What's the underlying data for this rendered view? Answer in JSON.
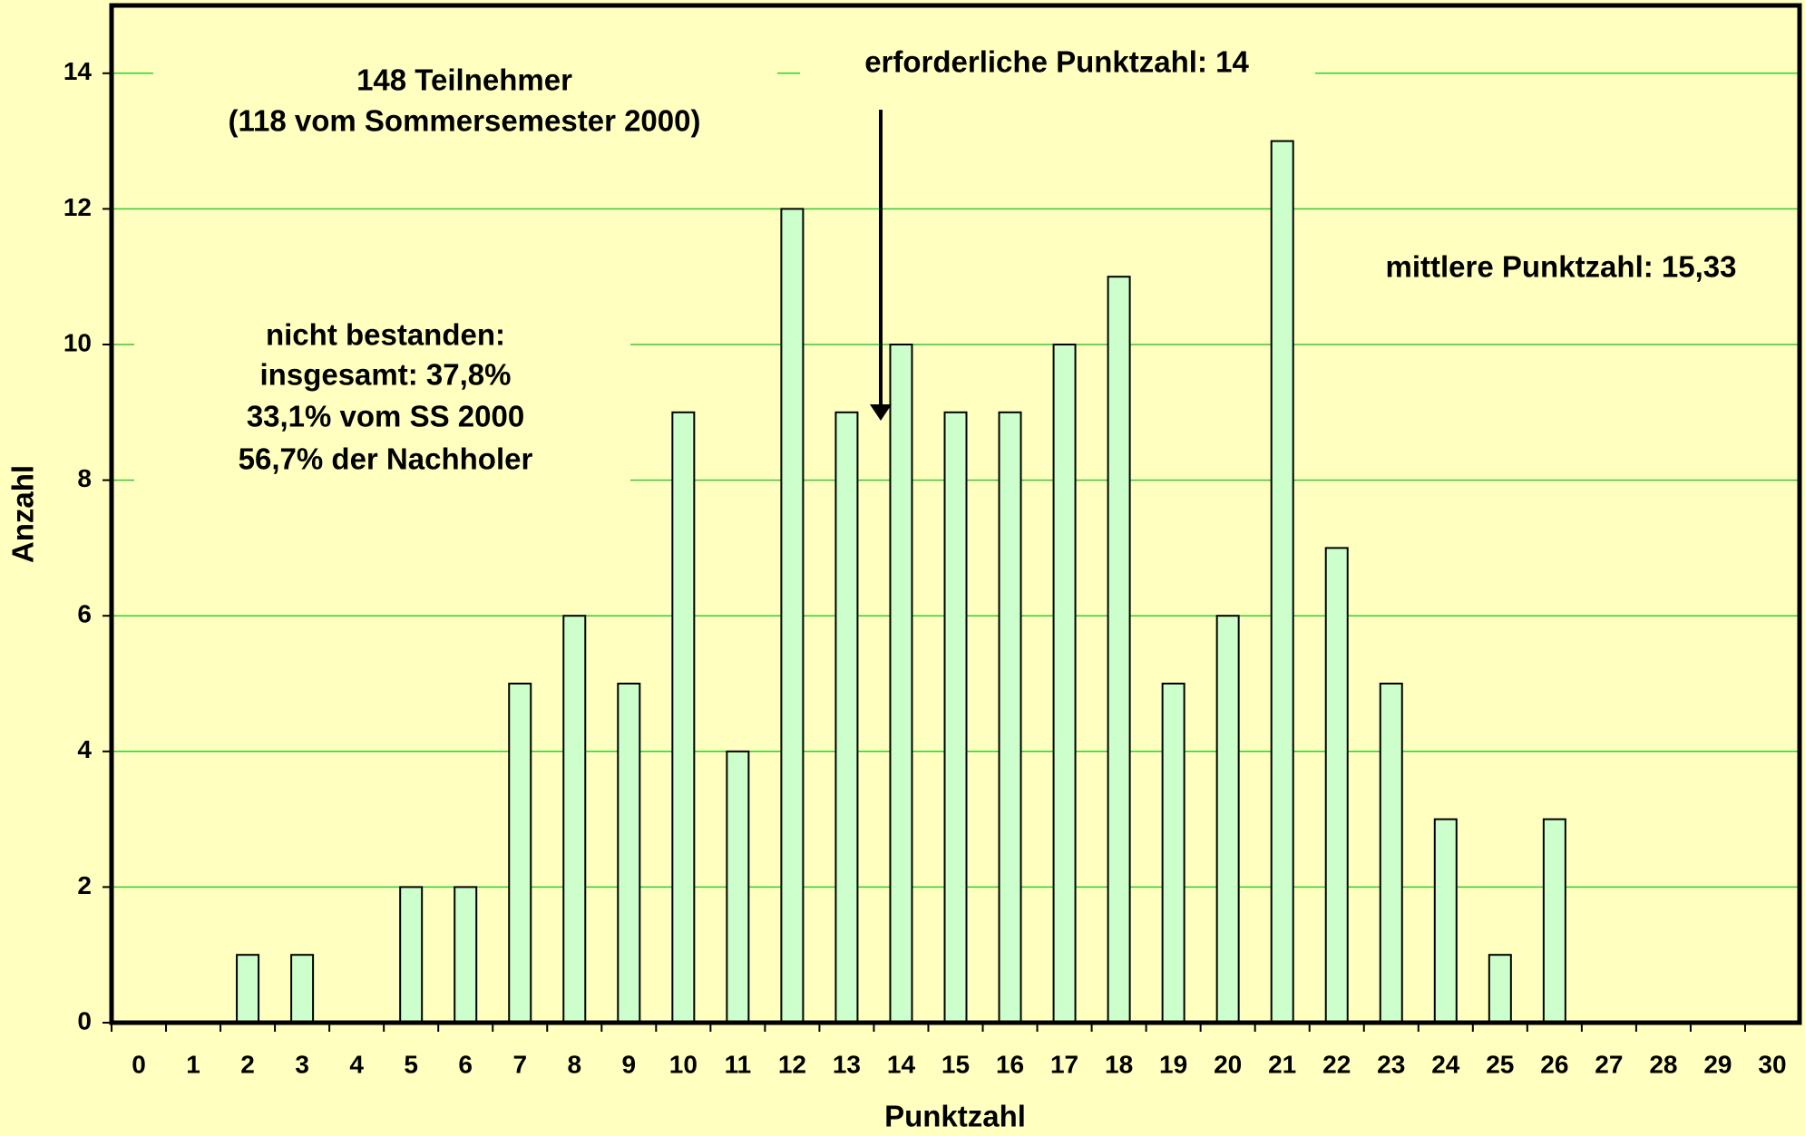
{
  "chart_data": {
    "type": "bar",
    "x_label": "Punktzahl",
    "y_label": "Anzahl",
    "categories": [
      "0",
      "1",
      "2",
      "3",
      "4",
      "5",
      "6",
      "7",
      "8",
      "9",
      "10",
      "11",
      "12",
      "13",
      "14",
      "15",
      "16",
      "17",
      "18",
      "19",
      "20",
      "21",
      "22",
      "23",
      "24",
      "25",
      "26",
      "27",
      "28",
      "29",
      "30"
    ],
    "values": [
      0,
      0,
      1,
      1,
      0,
      2,
      2,
      5,
      6,
      5,
      9,
      4,
      12,
      9,
      10,
      9,
      9,
      10,
      11,
      5,
      6,
      13,
      7,
      5,
      3,
      1,
      3,
      0,
      0,
      0,
      0
    ],
    "color": "#ccffcc",
    "ylim": [
      0,
      15
    ],
    "yticks": [
      0,
      2,
      4,
      6,
      8,
      10,
      12,
      14
    ],
    "grid": true,
    "grid_color": "#33cc33",
    "annotations": [
      "148 Teilnehmer",
      "(118 vom Sommersemester 2000)",
      "erforderliche Punktzahl: 14",
      "mittlere Punktzahl: 15,33",
      "nicht bestanden:",
      "insgesamt: 37,8%",
      "33,1% vom SS 2000",
      "56,7% der Nachholer"
    ]
  }
}
